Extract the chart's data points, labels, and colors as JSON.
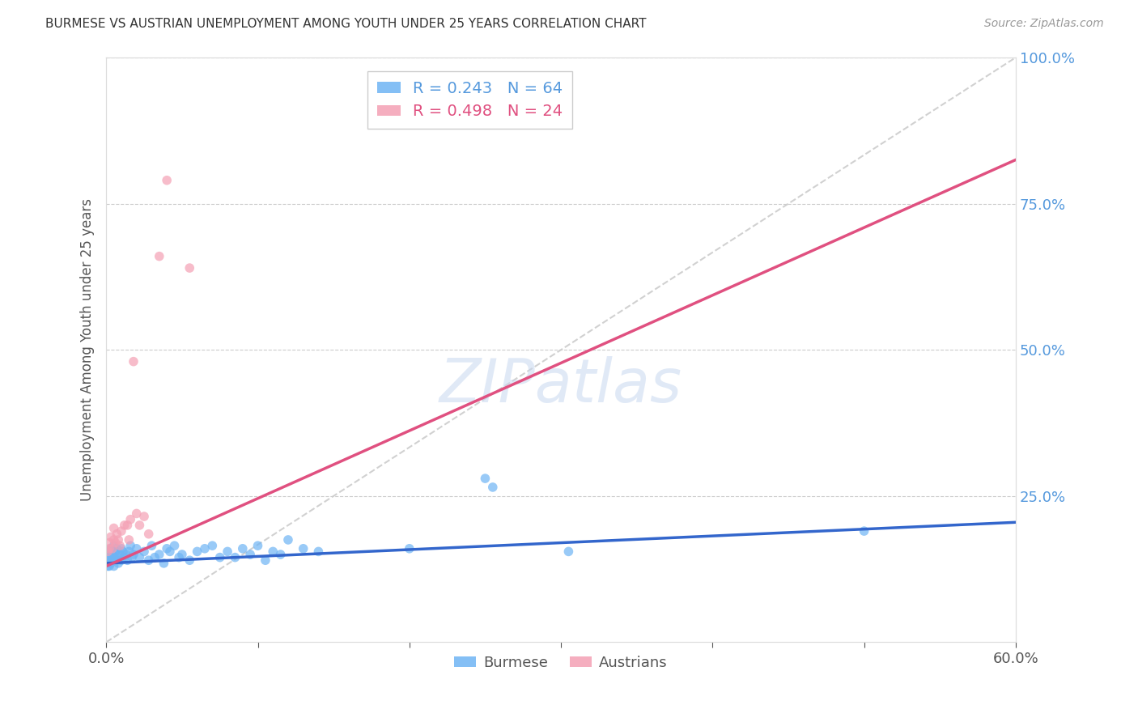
{
  "title": "BURMESE VS AUSTRIAN UNEMPLOYMENT AMONG YOUTH UNDER 25 YEARS CORRELATION CHART",
  "source": "Source: ZipAtlas.com",
  "ylabel": "Unemployment Among Youth under 25 years",
  "xlim": [
    0.0,
    0.6
  ],
  "ylim": [
    0.0,
    1.0
  ],
  "xtick_positions": [
    0.0,
    0.1,
    0.2,
    0.3,
    0.4,
    0.5,
    0.6
  ],
  "xtick_labels": [
    "0.0%",
    "",
    "",
    "",
    "",
    "",
    "60.0%"
  ],
  "ytick_positions": [
    0.0,
    0.25,
    0.5,
    0.75,
    1.0
  ],
  "ytick_labels": [
    "",
    "25.0%",
    "50.0%",
    "75.0%",
    "100.0%"
  ],
  "watermark": "ZIPatlas",
  "burmese_color": "#6EB4F4",
  "austrian_color": "#F4A0B4",
  "burmese_trend_color": "#3366CC",
  "austrian_trend_color": "#E05080",
  "diagonal_color": "#cccccc",
  "background_color": "#ffffff",
  "grid_color": "#cccccc",
  "scatter_size": 70,
  "burmese_trend": [
    0.0,
    0.135,
    0.6,
    0.205
  ],
  "austrian_trend": [
    0.0,
    0.13,
    0.6,
    0.825
  ],
  "diagonal": [
    0.0,
    0.0,
    0.6,
    1.0
  ],
  "burmese_x": [
    0.001,
    0.001,
    0.001,
    0.002,
    0.002,
    0.002,
    0.003,
    0.003,
    0.003,
    0.004,
    0.004,
    0.005,
    0.005,
    0.006,
    0.006,
    0.007,
    0.007,
    0.008,
    0.008,
    0.009,
    0.01,
    0.01,
    0.011,
    0.012,
    0.013,
    0.014,
    0.015,
    0.016,
    0.017,
    0.018,
    0.02,
    0.022,
    0.025,
    0.028,
    0.03,
    0.032,
    0.035,
    0.038,
    0.04,
    0.042,
    0.045,
    0.048,
    0.05,
    0.055,
    0.06,
    0.065,
    0.07,
    0.075,
    0.08,
    0.085,
    0.09,
    0.095,
    0.1,
    0.105,
    0.11,
    0.115,
    0.12,
    0.13,
    0.14,
    0.2,
    0.25,
    0.255,
    0.305,
    0.5
  ],
  "burmese_y": [
    0.13,
    0.145,
    0.155,
    0.14,
    0.155,
    0.13,
    0.145,
    0.16,
    0.135,
    0.15,
    0.14,
    0.165,
    0.13,
    0.145,
    0.155,
    0.14,
    0.16,
    0.145,
    0.135,
    0.15,
    0.16,
    0.14,
    0.155,
    0.145,
    0.15,
    0.14,
    0.155,
    0.165,
    0.145,
    0.15,
    0.16,
    0.145,
    0.155,
    0.14,
    0.165,
    0.145,
    0.15,
    0.135,
    0.16,
    0.155,
    0.165,
    0.145,
    0.15,
    0.14,
    0.155,
    0.16,
    0.165,
    0.145,
    0.155,
    0.145,
    0.16,
    0.15,
    0.165,
    0.14,
    0.155,
    0.15,
    0.175,
    0.16,
    0.155,
    0.16,
    0.28,
    0.265,
    0.155,
    0.19
  ],
  "austrian_x": [
    0.001,
    0.002,
    0.002,
    0.003,
    0.004,
    0.005,
    0.005,
    0.006,
    0.007,
    0.008,
    0.009,
    0.01,
    0.012,
    0.014,
    0.015,
    0.016,
    0.018,
    0.02,
    0.022,
    0.025,
    0.028,
    0.035,
    0.04,
    0.055
  ],
  "austrian_y": [
    0.155,
    0.16,
    0.17,
    0.18,
    0.16,
    0.175,
    0.195,
    0.17,
    0.185,
    0.175,
    0.165,
    0.19,
    0.2,
    0.2,
    0.175,
    0.21,
    0.48,
    0.22,
    0.2,
    0.215,
    0.185,
    0.66,
    0.79,
    0.64
  ]
}
